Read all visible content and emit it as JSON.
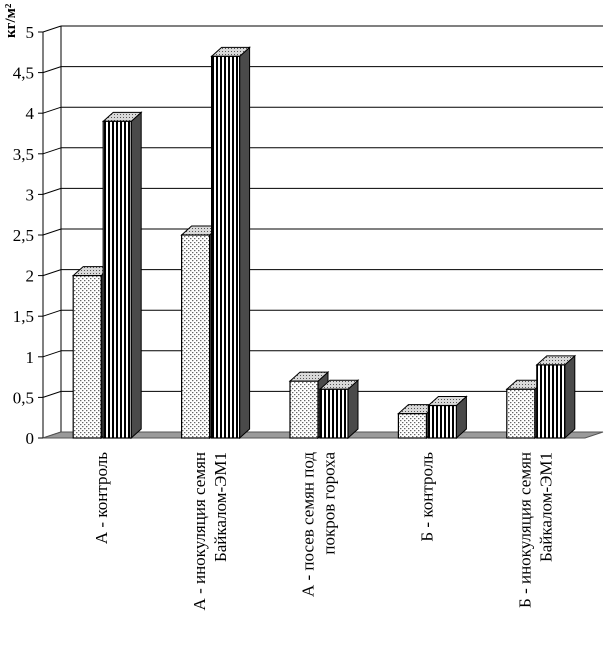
{
  "chart_data": {
    "type": "bar",
    "title": "",
    "xlabel": "",
    "ylabel": "кг/м²",
    "ylim": [
      0,
      5
    ],
    "yticks": [
      "0",
      "0,5",
      "1",
      "1,5",
      "2",
      "2,5",
      "3",
      "3,5",
      "4",
      "4,5",
      "5"
    ],
    "grid": true,
    "legend": "none",
    "categories": [
      [
        "А - контроль"
      ],
      [
        "А - инокуляция семян",
        "Байкалом-ЭМ1"
      ],
      [
        "А - посев семян под",
        "покров гороха"
      ],
      [
        "Б - контроль"
      ],
      [
        "Б - инокуляция семян",
        "Байкалом-ЭМ1"
      ]
    ],
    "series": [
      {
        "values": [
          2.0,
          2.5,
          0.7,
          0.3,
          0.6
        ],
        "pattern": "dots"
      },
      {
        "values": [
          3.9,
          4.7,
          0.6,
          0.4,
          0.9
        ],
        "pattern": "vertical-lines"
      }
    ],
    "colors": {
      "front": "#ffffff",
      "side": "#4a4a4a",
      "top": "#bdbdbd",
      "floor": "#9a9a9a",
      "grid": "#000000"
    }
  }
}
